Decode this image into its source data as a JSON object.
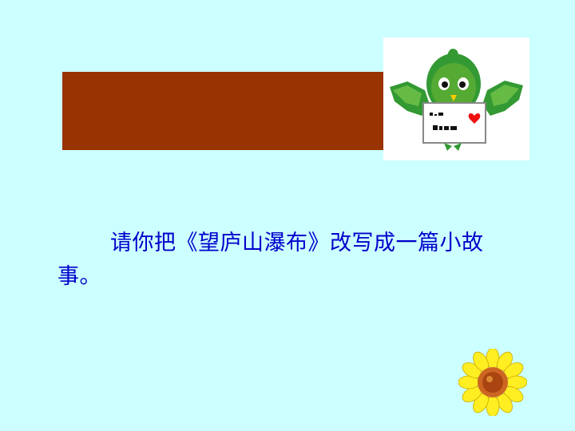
{
  "slide": {
    "background": "#ccffff",
    "title_bar_color": "#993300",
    "text_color": "#0000cc",
    "body_text": "请你把《望庐山瀑布》改写成一篇小故事。"
  },
  "decorations": {
    "bird_icon": "green-bird-holding-letter-icon",
    "flower_icon": "sunflower-icon"
  }
}
